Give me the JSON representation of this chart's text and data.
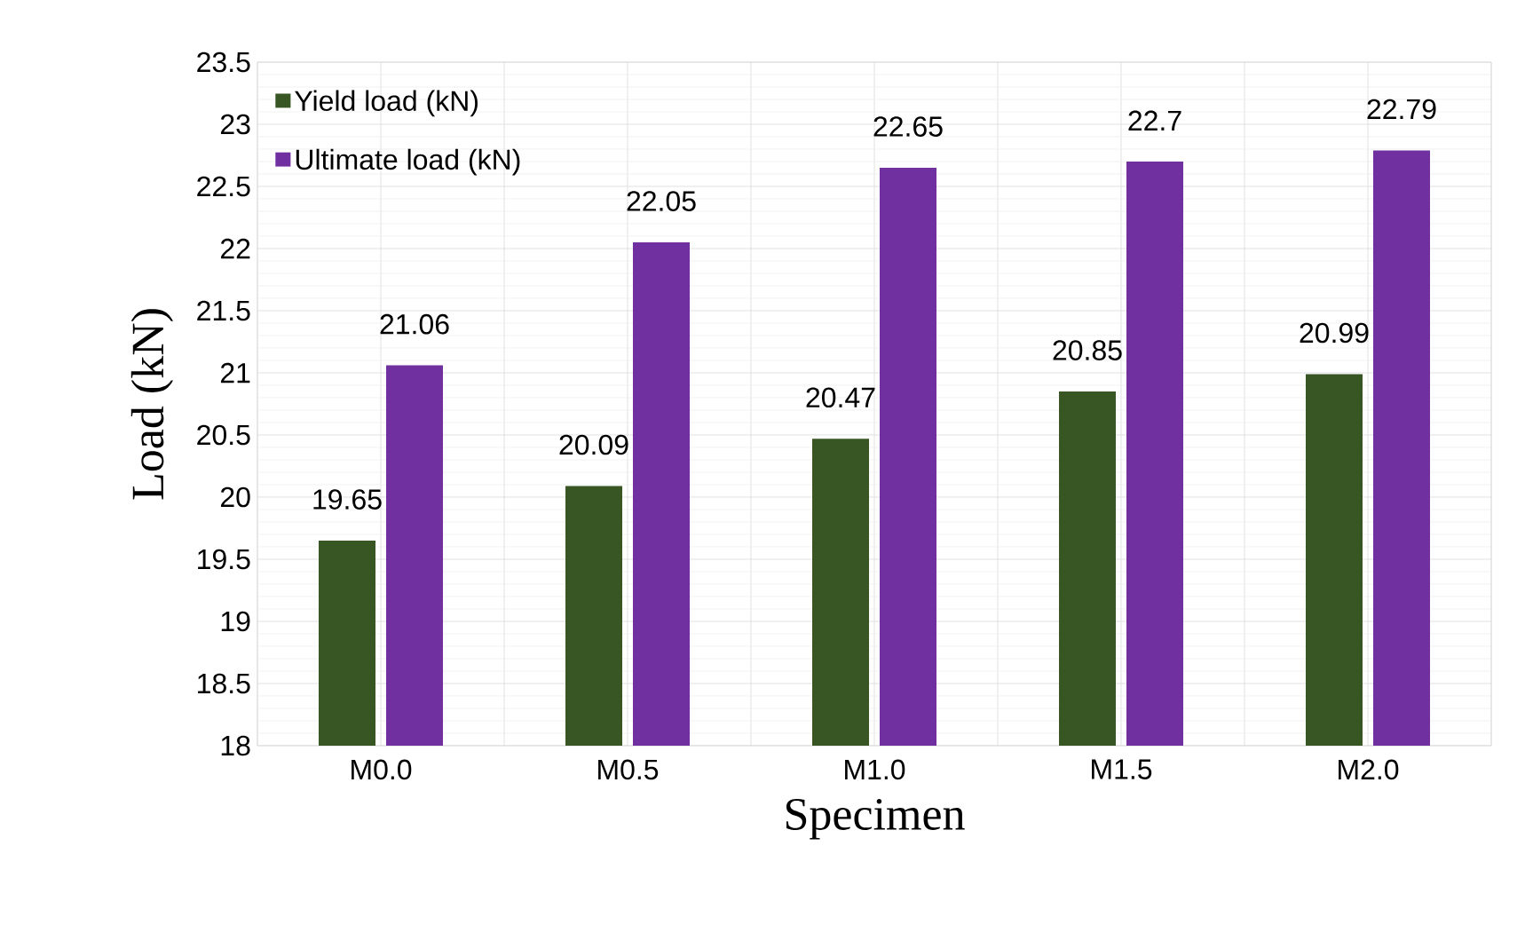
{
  "chart_data": {
    "type": "bar",
    "xlabel": "Specimen",
    "ylabel": "Load (kN)",
    "categories": [
      "M0.0",
      "M0.5",
      "M1.0",
      "M1.5",
      "M2.0"
    ],
    "series": [
      {
        "name": "Yield load (kN)",
        "color": "#375623",
        "values": [
          19.65,
          20.09,
          20.47,
          20.85,
          20.99
        ]
      },
      {
        "name": "Ultimate load (kN)",
        "color": "#7030a0",
        "values": [
          21.06,
          22.05,
          22.65,
          22.7,
          22.79
        ]
      }
    ],
    "ylim": [
      18,
      23.5
    ],
    "yticks": [
      18,
      18.5,
      19,
      19.5,
      20,
      20.5,
      21,
      21.5,
      22,
      22.5,
      23,
      23.5
    ],
    "grid": true,
    "legend": "top left",
    "data_labels": true
  }
}
